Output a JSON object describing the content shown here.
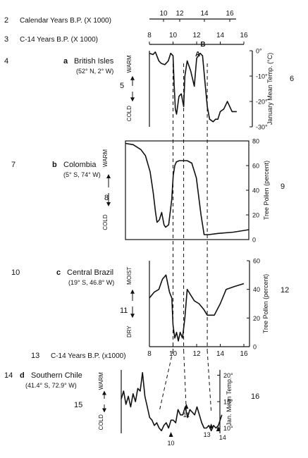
{
  "figure": {
    "line_numbers": [
      "2",
      "3",
      "4",
      "5",
      "6",
      "7",
      "8",
      "9",
      "10",
      "11",
      "12",
      "13",
      "14",
      "15",
      "16"
    ],
    "calendar_axis": {
      "label": "Calendar Years B.P. (X 1000)",
      "ticks": [
        "10",
        "12",
        "14",
        "16"
      ]
    },
    "c14_axis_top": {
      "label": "C-14 Years B.P. (X 1000)",
      "ticks": [
        "8",
        "10",
        "12",
        "14",
        "16"
      ]
    },
    "c14_axis_bottom": {
      "label": "C-14 Years B.P. (x1000)",
      "ticks": [
        "8",
        "10",
        "12",
        "14",
        "16"
      ]
    },
    "dashed_lines_c14": [
      10.0,
      10.9,
      12.9
    ]
  },
  "chart_data": [
    {
      "id": "a",
      "type": "line",
      "letter": "a",
      "title": "British Isles",
      "subtitle": "(52° N, 2° W)",
      "left_up": "WARM",
      "left_down": "COLD",
      "ylabel": "January Mean Temp. (°C)",
      "yticks": [
        "0°",
        "-10°",
        "-20°",
        "-30°"
      ],
      "ylim": [
        -30,
        0
      ],
      "xlim": [
        8,
        16
      ],
      "annotations": [
        "A",
        "B"
      ],
      "x": [
        8.0,
        8.3,
        8.5,
        8.8,
        9.0,
        9.3,
        9.6,
        9.8,
        10.0,
        10.1,
        10.2,
        10.3,
        10.5,
        10.7,
        10.9,
        11.0,
        11.2,
        11.5,
        11.8,
        12.0,
        12.3,
        12.5,
        12.7,
        12.9,
        13.1,
        13.4,
        13.6,
        13.8,
        14.0,
        14.3,
        14.6,
        15.0,
        15.4
      ],
      "y": [
        -1,
        -1.5,
        -0.5,
        -4,
        -5,
        -5.5,
        -4,
        -1,
        -2,
        -14,
        -23,
        -25,
        -18,
        -17,
        -22,
        -10,
        -4,
        -8,
        -14,
        -3,
        -1,
        -2,
        -12,
        -22,
        -27,
        -28,
        -27,
        -27,
        -24,
        -23,
        -20,
        -24,
        -24
      ]
    },
    {
      "id": "b",
      "type": "line",
      "letter": "b",
      "title": "Colombia",
      "subtitle": "(5° S, 74° W)",
      "left_up": "WARM",
      "left_down": "COLD",
      "ylabel": "Tree Pollen (percent)",
      "yticks": [
        "80",
        "60",
        "40",
        "20",
        "0"
      ],
      "ylim": [
        0,
        80
      ],
      "xlim": [
        8,
        16
      ],
      "x": [
        8.0,
        8.5,
        9.0,
        9.3,
        9.6,
        9.8,
        9.95,
        10.05,
        10.2,
        10.35,
        10.5,
        10.6,
        10.8,
        11.0,
        11.1,
        11.2,
        11.3,
        11.5,
        11.8,
        12.0,
        12.3,
        12.6,
        12.9,
        13.1,
        13.4,
        14.0,
        15.0,
        16.0
      ],
      "y": [
        78,
        77,
        73,
        68,
        55,
        38,
        22,
        14,
        16,
        22,
        12,
        10,
        12,
        32,
        52,
        60,
        63,
        64,
        64,
        64,
        62,
        50,
        20,
        4,
        4,
        5,
        6,
        8
      ]
    },
    {
      "id": "c",
      "type": "line",
      "letter": "c",
      "title": "Central Brazil",
      "subtitle": "(19° S, 46.8° W)",
      "left_up": "MOIST",
      "left_down": "DRY",
      "ylabel": "Tree Pollen (percent)",
      "yticks": [
        "60",
        "40",
        "20",
        "0"
      ],
      "ylim": [
        0,
        60
      ],
      "xlim": [
        8,
        16
      ],
      "x": [
        8.0,
        8.4,
        8.8,
        9.1,
        9.4,
        9.7,
        9.9,
        10.0,
        10.15,
        10.3,
        10.45,
        10.6,
        10.8,
        11.0,
        11.2,
        11.5,
        11.8,
        12.2,
        12.6,
        12.9,
        13.1,
        13.5,
        14.0,
        14.5,
        15.2,
        16.0
      ],
      "y": [
        34,
        38,
        40,
        47,
        50,
        38,
        34,
        15,
        6,
        10,
        4,
        10,
        6,
        20,
        40,
        36,
        32,
        30,
        26,
        22,
        22,
        22,
        30,
        40,
        42,
        44
      ]
    },
    {
      "id": "d",
      "type": "line",
      "letter": "d",
      "title": "Southern Chile",
      "subtitle": "(41.4° S, 72.9° W)",
      "left_up": "WARM",
      "left_down": "COLD",
      "ylabel": "Jan. Mean Temp.",
      "yticks": [
        "20°",
        "15°",
        "10°"
      ],
      "ylim": [
        9,
        21
      ],
      "xlim": [
        6,
        16
      ],
      "arrow_labels": [
        "10",
        "11",
        "13",
        "14"
      ],
      "x": [
        6.0,
        6.2,
        6.4,
        6.6,
        6.8,
        7.0,
        7.2,
        7.4,
        7.6,
        7.8,
        8.0,
        8.2,
        8.4,
        8.6,
        8.8,
        9.0,
        9.2,
        9.4,
        9.6,
        9.8,
        10.0,
        10.2,
        10.4,
        10.6,
        10.8,
        11.0,
        11.2,
        11.4,
        11.6,
        11.8,
        12.0,
        12.2,
        12.4,
        12.6,
        12.8,
        13.0,
        13.2,
        13.4,
        13.6,
        13.8,
        14.0,
        14.2,
        14.5
      ],
      "y": [
        15.5,
        17,
        14.5,
        16,
        14,
        16.5,
        15,
        17.5,
        17,
        20.5,
        16,
        14,
        12,
        11.5,
        10.5,
        11,
        10,
        9.5,
        10.5,
        11,
        10,
        11.5,
        11.5,
        11,
        13.5,
        12.5,
        12.5,
        14,
        12,
        13.5,
        13,
        12.5,
        14,
        12.5,
        11,
        10,
        10,
        10.5,
        9.5,
        10.5,
        10,
        10.5,
        12.5
      ]
    }
  ]
}
